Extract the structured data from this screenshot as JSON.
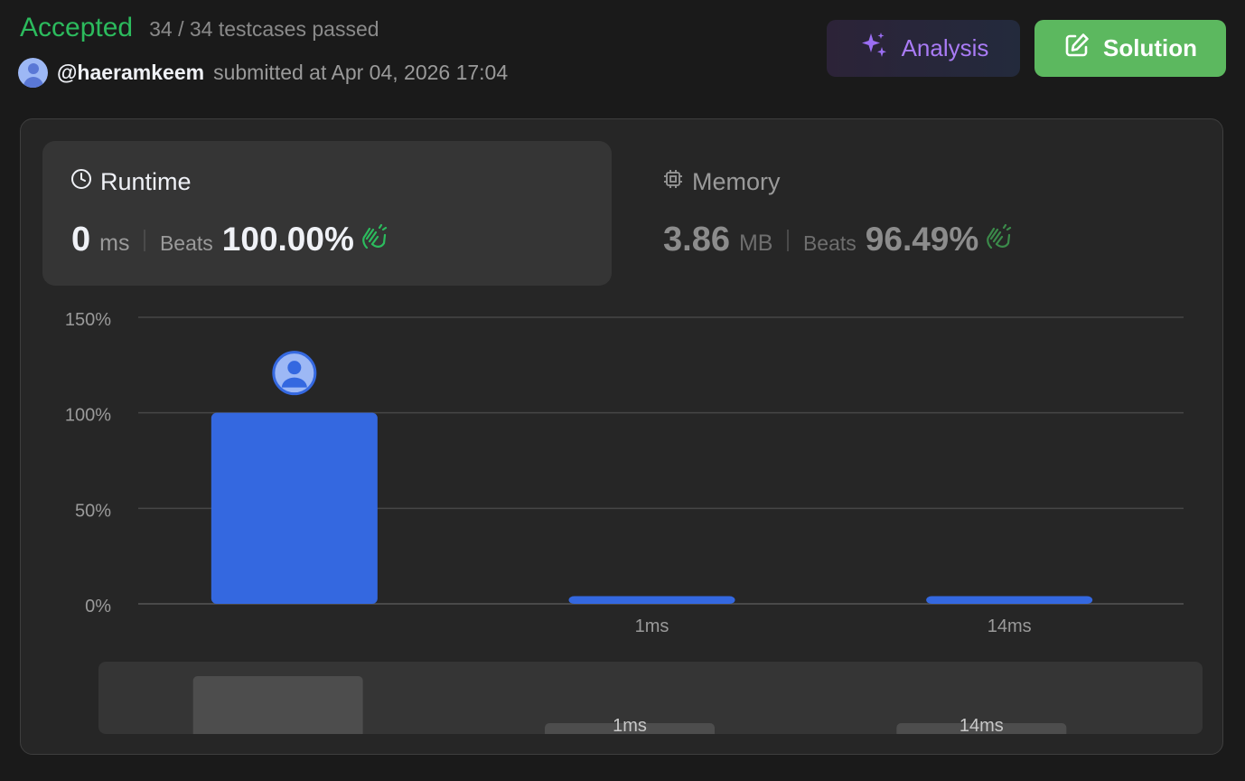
{
  "header": {
    "status": "Accepted",
    "testcases": "34 / 34 testcases passed",
    "username": "@haeramkeem",
    "submitted": "submitted at Apr 04, 2026 17:04"
  },
  "buttons": {
    "analysis": "Analysis",
    "solution": "Solution"
  },
  "runtime": {
    "title": "Runtime",
    "value": "0",
    "unit": "ms",
    "beats_label": "Beats",
    "beats": "100.00%"
  },
  "memory": {
    "title": "Memory",
    "value": "3.86",
    "unit": "MB",
    "beats_label": "Beats",
    "beats": "96.49%"
  },
  "colors": {
    "accepted": "#2cbb5d",
    "bar": "#3468e0",
    "solution": "#5cb85f",
    "analysis": "#a97bf5"
  },
  "chart_data": {
    "type": "bar",
    "categories": [
      "",
      "1ms",
      "14ms"
    ],
    "values": [
      100,
      4,
      4
    ],
    "ylim": [
      0,
      150
    ],
    "yticks": [
      "0%",
      "50%",
      "100%",
      "150%"
    ],
    "highlighted_index": 0,
    "navigator_labels": [
      "",
      "1ms",
      "14ms"
    ]
  }
}
